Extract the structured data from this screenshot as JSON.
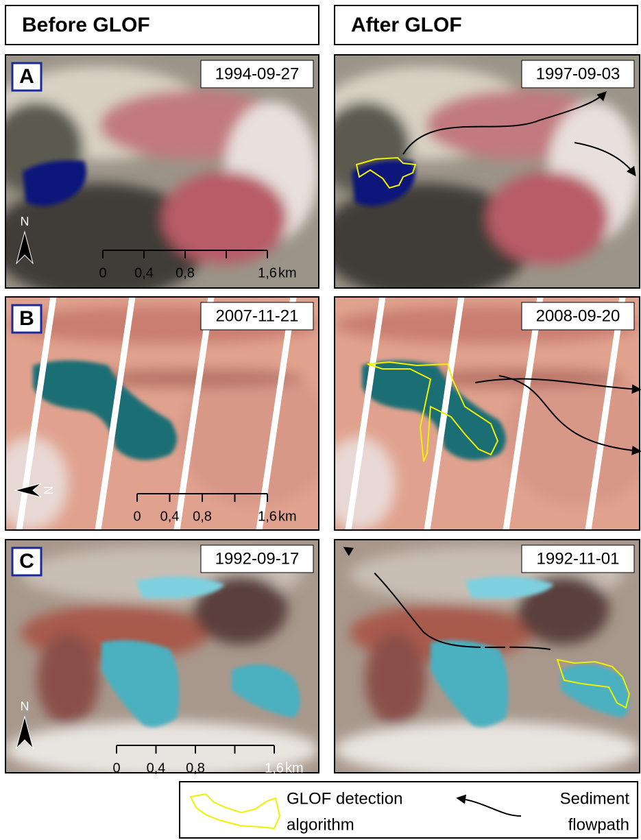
{
  "headers": [
    "Before GLOF",
    "After GLOF"
  ],
  "panels": [
    {
      "letter": "A",
      "dates": [
        "1994-09-27",
        "1997-09-03"
      ],
      "scale_labels": [
        "0",
        "0,4",
        "0,8",
        "1,6"
      ],
      "unit": "km",
      "north": "N"
    },
    {
      "letter": "B",
      "dates": [
        "2007-11-21",
        "2008-09-20"
      ],
      "scale_labels": [
        "0",
        "0,4",
        "0,8",
        "1,6"
      ],
      "unit": "km",
      "north": "N"
    },
    {
      "letter": "C",
      "dates": [
        "1992-09-17",
        "1992-11-01"
      ],
      "scale_labels": [
        "0",
        "0,4",
        "0,8",
        "1,6"
      ],
      "unit": "km",
      "north": "N"
    }
  ],
  "legend": {
    "detection": [
      "GLOF detection",
      "algorithm"
    ],
    "flowpath": [
      "Sediment",
      "flowpath"
    ]
  }
}
